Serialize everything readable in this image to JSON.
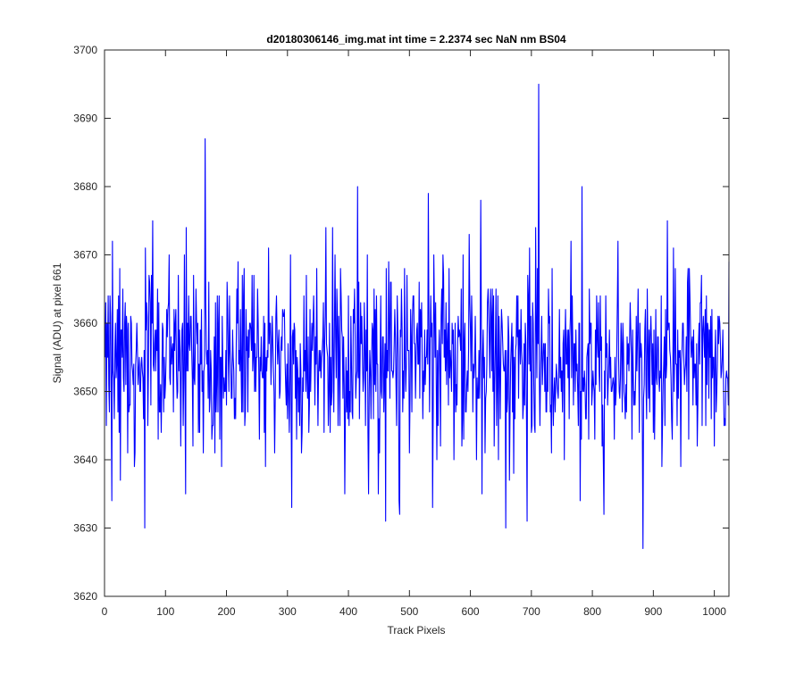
{
  "chart_data": {
    "type": "line",
    "title": "d20180306146_img.mat int time = 2.2374 sec  NaN nm BS04",
    "xlabel": "Track Pixels",
    "ylabel": "Signal (ADU) at pixel 661",
    "xlim": [
      0,
      1024
    ],
    "ylim": [
      3620,
      3700
    ],
    "xticks": [
      0,
      100,
      200,
      300,
      400,
      500,
      600,
      700,
      800,
      900,
      1000
    ],
    "yticks": [
      3620,
      3630,
      3640,
      3650,
      3660,
      3670,
      3680,
      3690,
      3700
    ],
    "grid": false,
    "legend": false,
    "colors": {
      "line": "#0000ff",
      "axes": "#262626"
    },
    "series": [
      {
        "color": "#0000ff",
        "n_points": 1024,
        "x_start": 1,
        "x_step": 1,
        "mean": 3654.5,
        "std_dev": 7.0,
        "values_range": [
          3627,
          3695
        ],
        "peaks": [
          {
            "x": 712,
            "y": 3695
          },
          {
            "x": 165,
            "y": 3687
          },
          {
            "x": 415,
            "y": 3680
          },
          {
            "x": 783,
            "y": 3680
          },
          {
            "x": 531,
            "y": 3679
          },
          {
            "x": 617,
            "y": 3678
          },
          {
            "x": 13,
            "y": 3672
          },
          {
            "x": 79,
            "y": 3675
          },
          {
            "x": 134,
            "y": 3674
          }
        ],
        "troughs": [
          {
            "x": 883,
            "y": 3627
          },
          {
            "x": 658,
            "y": 3630
          },
          {
            "x": 693,
            "y": 3631
          },
          {
            "x": 484,
            "y": 3632
          },
          {
            "x": 819,
            "y": 3632
          },
          {
            "x": 307,
            "y": 3633
          },
          {
            "x": 12,
            "y": 3634
          },
          {
            "x": 433,
            "y": 3635
          }
        ]
      }
    ]
  }
}
